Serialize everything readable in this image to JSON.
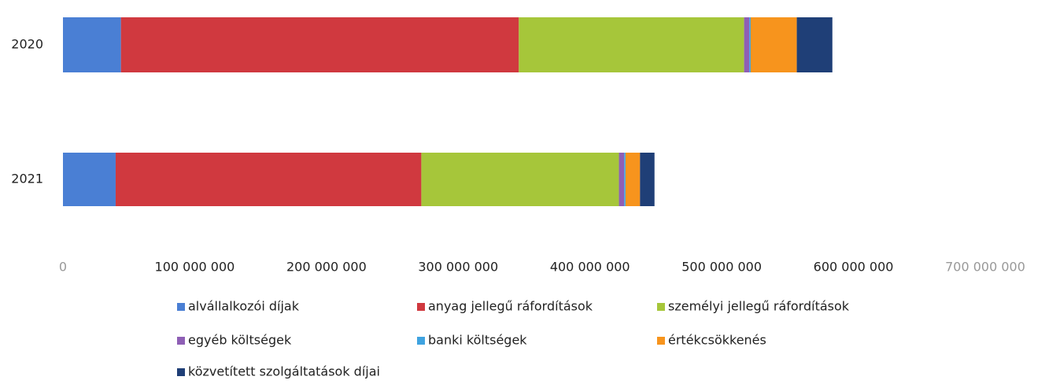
{
  "chart_data": {
    "type": "stacked-bar-horizontal",
    "categories": [
      "2020",
      "2021"
    ],
    "series": [
      {
        "name": "alvállalkozói díjak",
        "color": "#4a7fd4",
        "values": [
          44000000,
          40000000
        ]
      },
      {
        "name": "anyag jellegű ráfordítások",
        "color": "#d0393f",
        "values": [
          302000000,
          232000000
        ]
      },
      {
        "name": "személyi jellegű ráfordítások",
        "color": "#a6c63a",
        "values": [
          171000000,
          150000000
        ]
      },
      {
        "name": "egyéb költségek",
        "color": "#8e5fb5",
        "values": [
          4000000,
          4000000
        ]
      },
      {
        "name": "banki költségek",
        "color": "#3fa3e0",
        "values": [
          1000000,
          1000000
        ]
      },
      {
        "name": "értékcsökkenés",
        "color": "#f7941d",
        "values": [
          35000000,
          11000000
        ]
      },
      {
        "name": "közvetített szolgáltatások díjai",
        "color": "#1f3f77",
        "values": [
          27000000,
          11000000
        ]
      }
    ],
    "xlim": [
      0,
      700000000
    ],
    "xticks": [
      0,
      {
        "value": 100000000,
        "label": "100 000 000"
      },
      {
        "value": 200000000,
        "label": "200 000 000"
      },
      {
        "value": 300000000,
        "label": "300 000 000"
      },
      {
        "value": 400000000,
        "label": "400 000 000"
      },
      {
        "value": 500000000,
        "label": "500 000 000"
      },
      {
        "value": 600000000,
        "label": "600 000 000"
      },
      {
        "value": 700000000,
        "label": "700 000 000"
      }
    ],
    "legend": "bottom"
  }
}
